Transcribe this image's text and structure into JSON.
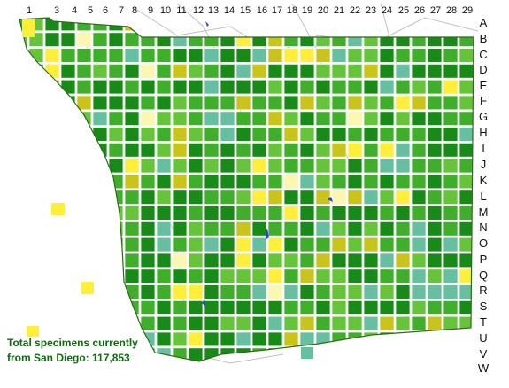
{
  "map": {
    "column_labels": [
      "1",
      "3",
      "4",
      "5",
      "6",
      "7",
      "8",
      "9",
      "10",
      "11",
      "12",
      "13",
      "14",
      "15",
      "16",
      "17",
      "18",
      "19",
      "20",
      "21",
      "22",
      "23",
      "24",
      "25",
      "26",
      "27",
      "28",
      "29"
    ],
    "row_labels": [
      "A",
      "B",
      "C",
      "D",
      "E",
      "F",
      "G",
      "H",
      "I",
      "J",
      "K",
      "L",
      "M",
      "N",
      "O",
      "P",
      "Q",
      "R",
      "S",
      "T",
      "U",
      "V",
      "W"
    ],
    "legend_colors": {
      "dark_green": "#178a17",
      "mid_green": "#3fae2a",
      "light_green": "#66c43a",
      "teal": "#66bfa0",
      "olive": "#c8c419",
      "yellow": "#ffee3a",
      "pale_yellow": "#fbf6b0"
    },
    "land_color": "#e8eef0",
    "coast_color": "#2f6a1a",
    "road_color": "#b9b9b9",
    "water_color": "#2b3fd0"
  },
  "caption": {
    "line1": "Total specimens currently",
    "line2": "from San Diego: 117,853"
  }
}
